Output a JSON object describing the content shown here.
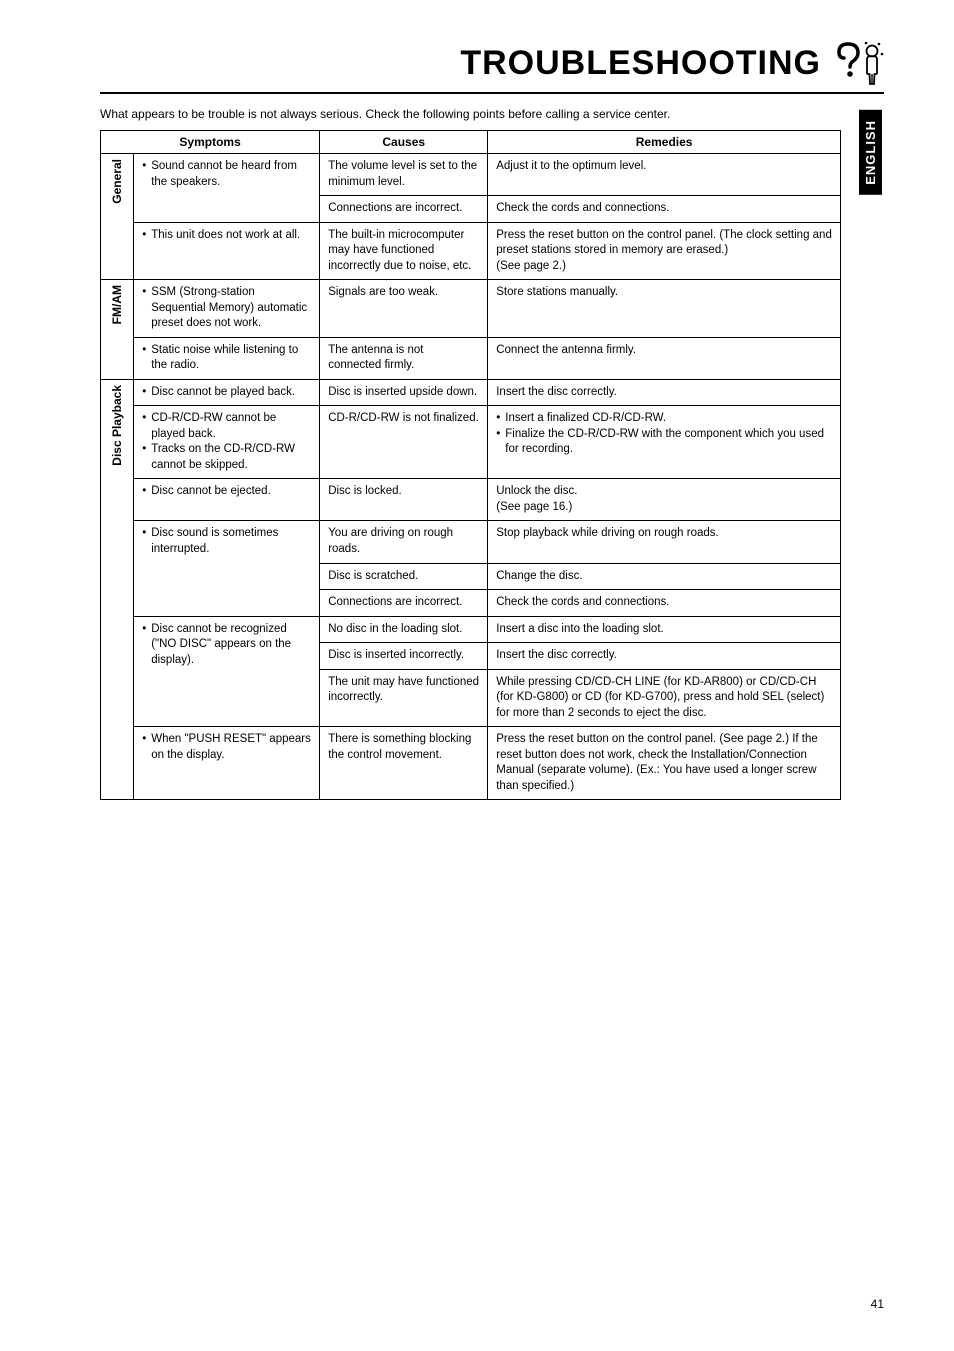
{
  "title": "TROUBLESHOOTING",
  "intro": "What appears to be trouble is not always serious. Check the following points before calling a service center.",
  "language_tab": "ENGLISH",
  "page_number": "41",
  "table": {
    "headers": {
      "symptoms": "Symptoms",
      "causes": "Causes",
      "remedies": "Remedies"
    },
    "sections": [
      {
        "category": "General",
        "rows": [
          {
            "symptom": "Sound cannot be heard from the speakers.",
            "symptom_rowspan": 2,
            "cause": "The volume level is set to the minimum level.",
            "remedy": "Adjust it to the optimum level."
          },
          {
            "cause": "Connections are incorrect.",
            "remedy": "Check the cords and connections."
          },
          {
            "symptom": "This unit does not work at all.",
            "cause": "The built-in microcomputer may have functioned incorrectly due to noise, etc.",
            "remedy": "Press the reset button on the control panel. (The clock setting and preset stations stored in memory are erased.)\n(See page 2.)"
          }
        ]
      },
      {
        "category": "FM/AM",
        "rows": [
          {
            "symptom": "SSM (Strong-station Sequential Memory) automatic preset does not work.",
            "cause": "Signals are too weak.",
            "remedy": "Store stations manually."
          },
          {
            "symptom": "Static noise while listening to the radio.",
            "cause": "The antenna is not connected firmly.",
            "remedy": "Connect the antenna firmly."
          }
        ]
      },
      {
        "category": "Disc Playback",
        "rows": [
          {
            "symptom": "Disc cannot be played back.",
            "cause": "Disc is inserted upside down.",
            "remedy": "Insert the disc correctly."
          },
          {
            "symptom_multi": [
              "CD-R/CD-RW cannot be played back.",
              "Tracks on the CD-R/CD-RW cannot be skipped."
            ],
            "cause": "CD-R/CD-RW is not finalized.",
            "remedy_multi": [
              "Insert a finalized CD-R/CD-RW.",
              "Finalize the CD-R/CD-RW with the component which you used for recording."
            ]
          },
          {
            "symptom": "Disc cannot be ejected.",
            "cause": "Disc is locked.",
            "remedy": "Unlock the disc.\n(See page 16.)"
          },
          {
            "symptom": "Disc sound is sometimes interrupted.",
            "symptom_rowspan": 3,
            "cause": "You are driving on rough roads.",
            "remedy": "Stop playback while driving on rough roads."
          },
          {
            "cause": "Disc is scratched.",
            "remedy": "Change the disc."
          },
          {
            "cause": "Connections are incorrect.",
            "remedy": "Check the cords and connections."
          },
          {
            "symptom": "Disc cannot be recognized (\"NO DISC\" appears on the display).",
            "symptom_rowspan": 3,
            "cause": "No disc in the loading slot.",
            "remedy": "Insert a disc into the loading slot."
          },
          {
            "cause": "Disc is inserted incorrectly.",
            "remedy": "Insert the disc correctly."
          },
          {
            "cause": "The unit may have functioned incorrectly.",
            "remedy": "While pressing CD/CD-CH LINE (for KD-AR800) or CD/CD-CH (for KD-G800) or CD (for KD-G700), press and hold SEL (select) for more than 2 seconds to eject the disc."
          },
          {
            "symptom": "When \"PUSH RESET\" appears on the display.",
            "cause": "There is something blocking the control movement.",
            "remedy": "Press the reset button on the control panel. (See page 2.) If the reset button does not work, check the Installation/Connection Manual (separate volume). (Ex.: You have used a longer screw than specified.)"
          }
        ]
      }
    ]
  }
}
